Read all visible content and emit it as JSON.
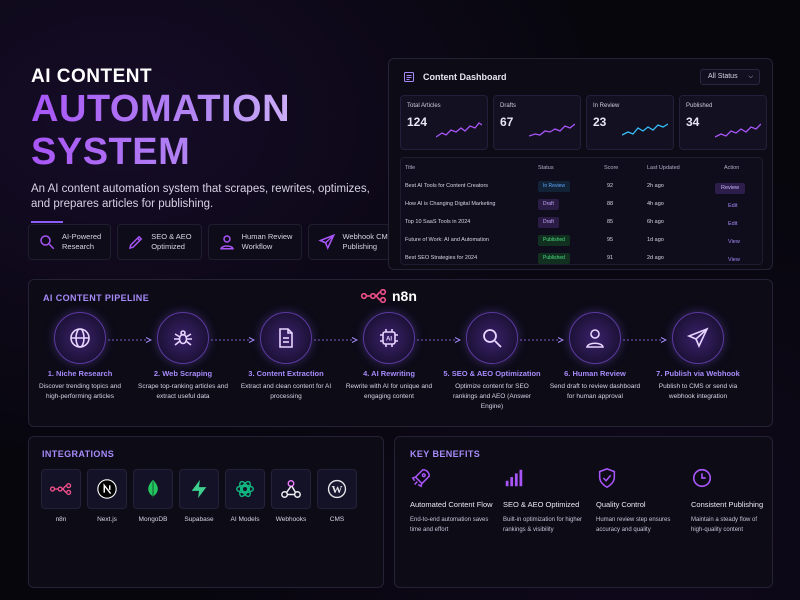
{
  "hero": {
    "kicker": "AI CONTENT",
    "title_line1": "AUTOMATION",
    "title_line2": "SYSTEM",
    "description": "An AI content automation system that scrapes, rewrites, optimizes, and prepares articles for publishing.",
    "features": [
      {
        "line1": "AI-Powered",
        "line2": "Research",
        "icon": "search-icon"
      },
      {
        "line1": "SEO & AEO",
        "line2": "Optimized",
        "icon": "pen-icon"
      },
      {
        "line1": "Human Review",
        "line2": "Workflow",
        "icon": "user-icon"
      },
      {
        "line1": "Webhook CMS",
        "line2": "Publishing",
        "icon": "send-icon"
      }
    ]
  },
  "dashboard": {
    "title": "Content Dashboard",
    "filter": "All Status",
    "stats": [
      {
        "label": "Total Articles",
        "value": "124",
        "color": "#a855f7"
      },
      {
        "label": "Drafts",
        "value": "67",
        "color": "#a855f7"
      },
      {
        "label": "In Review",
        "value": "23",
        "color": "#38bdf8"
      },
      {
        "label": "Published",
        "value": "34",
        "color": "#a855f7"
      }
    ],
    "columns": [
      "Title",
      "Status",
      "Score",
      "Last Updated",
      "Action"
    ],
    "rows": [
      {
        "title": "Best AI Tools for Content Creators",
        "status": "In Review",
        "score": "92",
        "updated": "2h ago",
        "action": "Review"
      },
      {
        "title": "How AI is Changing Digital Marketing",
        "status": "Draft",
        "score": "88",
        "updated": "4h ago",
        "action": "Edit"
      },
      {
        "title": "Top 10 SaaS Tools in 2024",
        "status": "Draft",
        "score": "85",
        "updated": "6h ago",
        "action": "Edit"
      },
      {
        "title": "Future of Work: AI and Automation",
        "status": "Published",
        "score": "95",
        "updated": "1d ago",
        "action": "View"
      },
      {
        "title": "Best SEO Strategies for 2024",
        "status": "Published",
        "score": "91",
        "updated": "2d ago",
        "action": "View"
      }
    ]
  },
  "pipeline": {
    "title": "AI CONTENT PIPELINE",
    "brand": "n8n",
    "steps": [
      {
        "title": "1. Niche Research",
        "desc": "Discover trending topics and high-performing articles",
        "icon": "globe-icon"
      },
      {
        "title": "2. Web Scraping",
        "desc": "Scrape top-ranking articles and extract useful data",
        "icon": "spider-icon"
      },
      {
        "title": "3. Content Extraction",
        "desc": "Extract and clean content for AI processing",
        "icon": "document-icon"
      },
      {
        "title": "4. AI Rewriting",
        "desc": "Rewrite with AI for unique and engaging content",
        "icon": "ai-chip-icon"
      },
      {
        "title": "5. SEO & AEO Optimization",
        "desc": "Optimize content for SEO rankings and AEO (Answer Engine)",
        "icon": "search-icon"
      },
      {
        "title": "6. Human Review",
        "desc": "Send draft to review dashboard for human approval",
        "icon": "user-icon"
      },
      {
        "title": "7. Publish via Webhook",
        "desc": "Publish to CMS or send via webhook integration",
        "icon": "send-icon"
      }
    ]
  },
  "integrations": {
    "title": "INTEGRATIONS",
    "items": [
      {
        "name": "n8n",
        "icon": "n8n-icon"
      },
      {
        "name": "Next.js",
        "icon": "nextjs-icon"
      },
      {
        "name": "MongoDB",
        "icon": "mongodb-icon"
      },
      {
        "name": "Supabase",
        "icon": "supabase-icon"
      },
      {
        "name": "AI Models",
        "icon": "openai-icon"
      },
      {
        "name": "Webhooks",
        "icon": "webhook-icon"
      },
      {
        "name": "CMS",
        "icon": "wordpress-icon"
      }
    ]
  },
  "benefits": {
    "title": "KEY BENEFITS",
    "items": [
      {
        "title": "Automated Content Flow",
        "desc": "End-to-end automation saves time and effort",
        "icon": "rocket-icon"
      },
      {
        "title": "SEO & AEO Optimized",
        "desc": "Built-in optimization for higher rankings & visibility",
        "icon": "bar-chart-icon"
      },
      {
        "title": "Quality Control",
        "desc": "Human review step ensures accuracy and quality",
        "icon": "shield-check-icon"
      },
      {
        "title": "Consistent Publishing",
        "desc": "Maintain a steady flow of high-quality content",
        "icon": "clock-icon"
      }
    ]
  },
  "colors": {
    "accent": "#a855f7",
    "background": "#07060d",
    "panel": "#0c0b16"
  }
}
